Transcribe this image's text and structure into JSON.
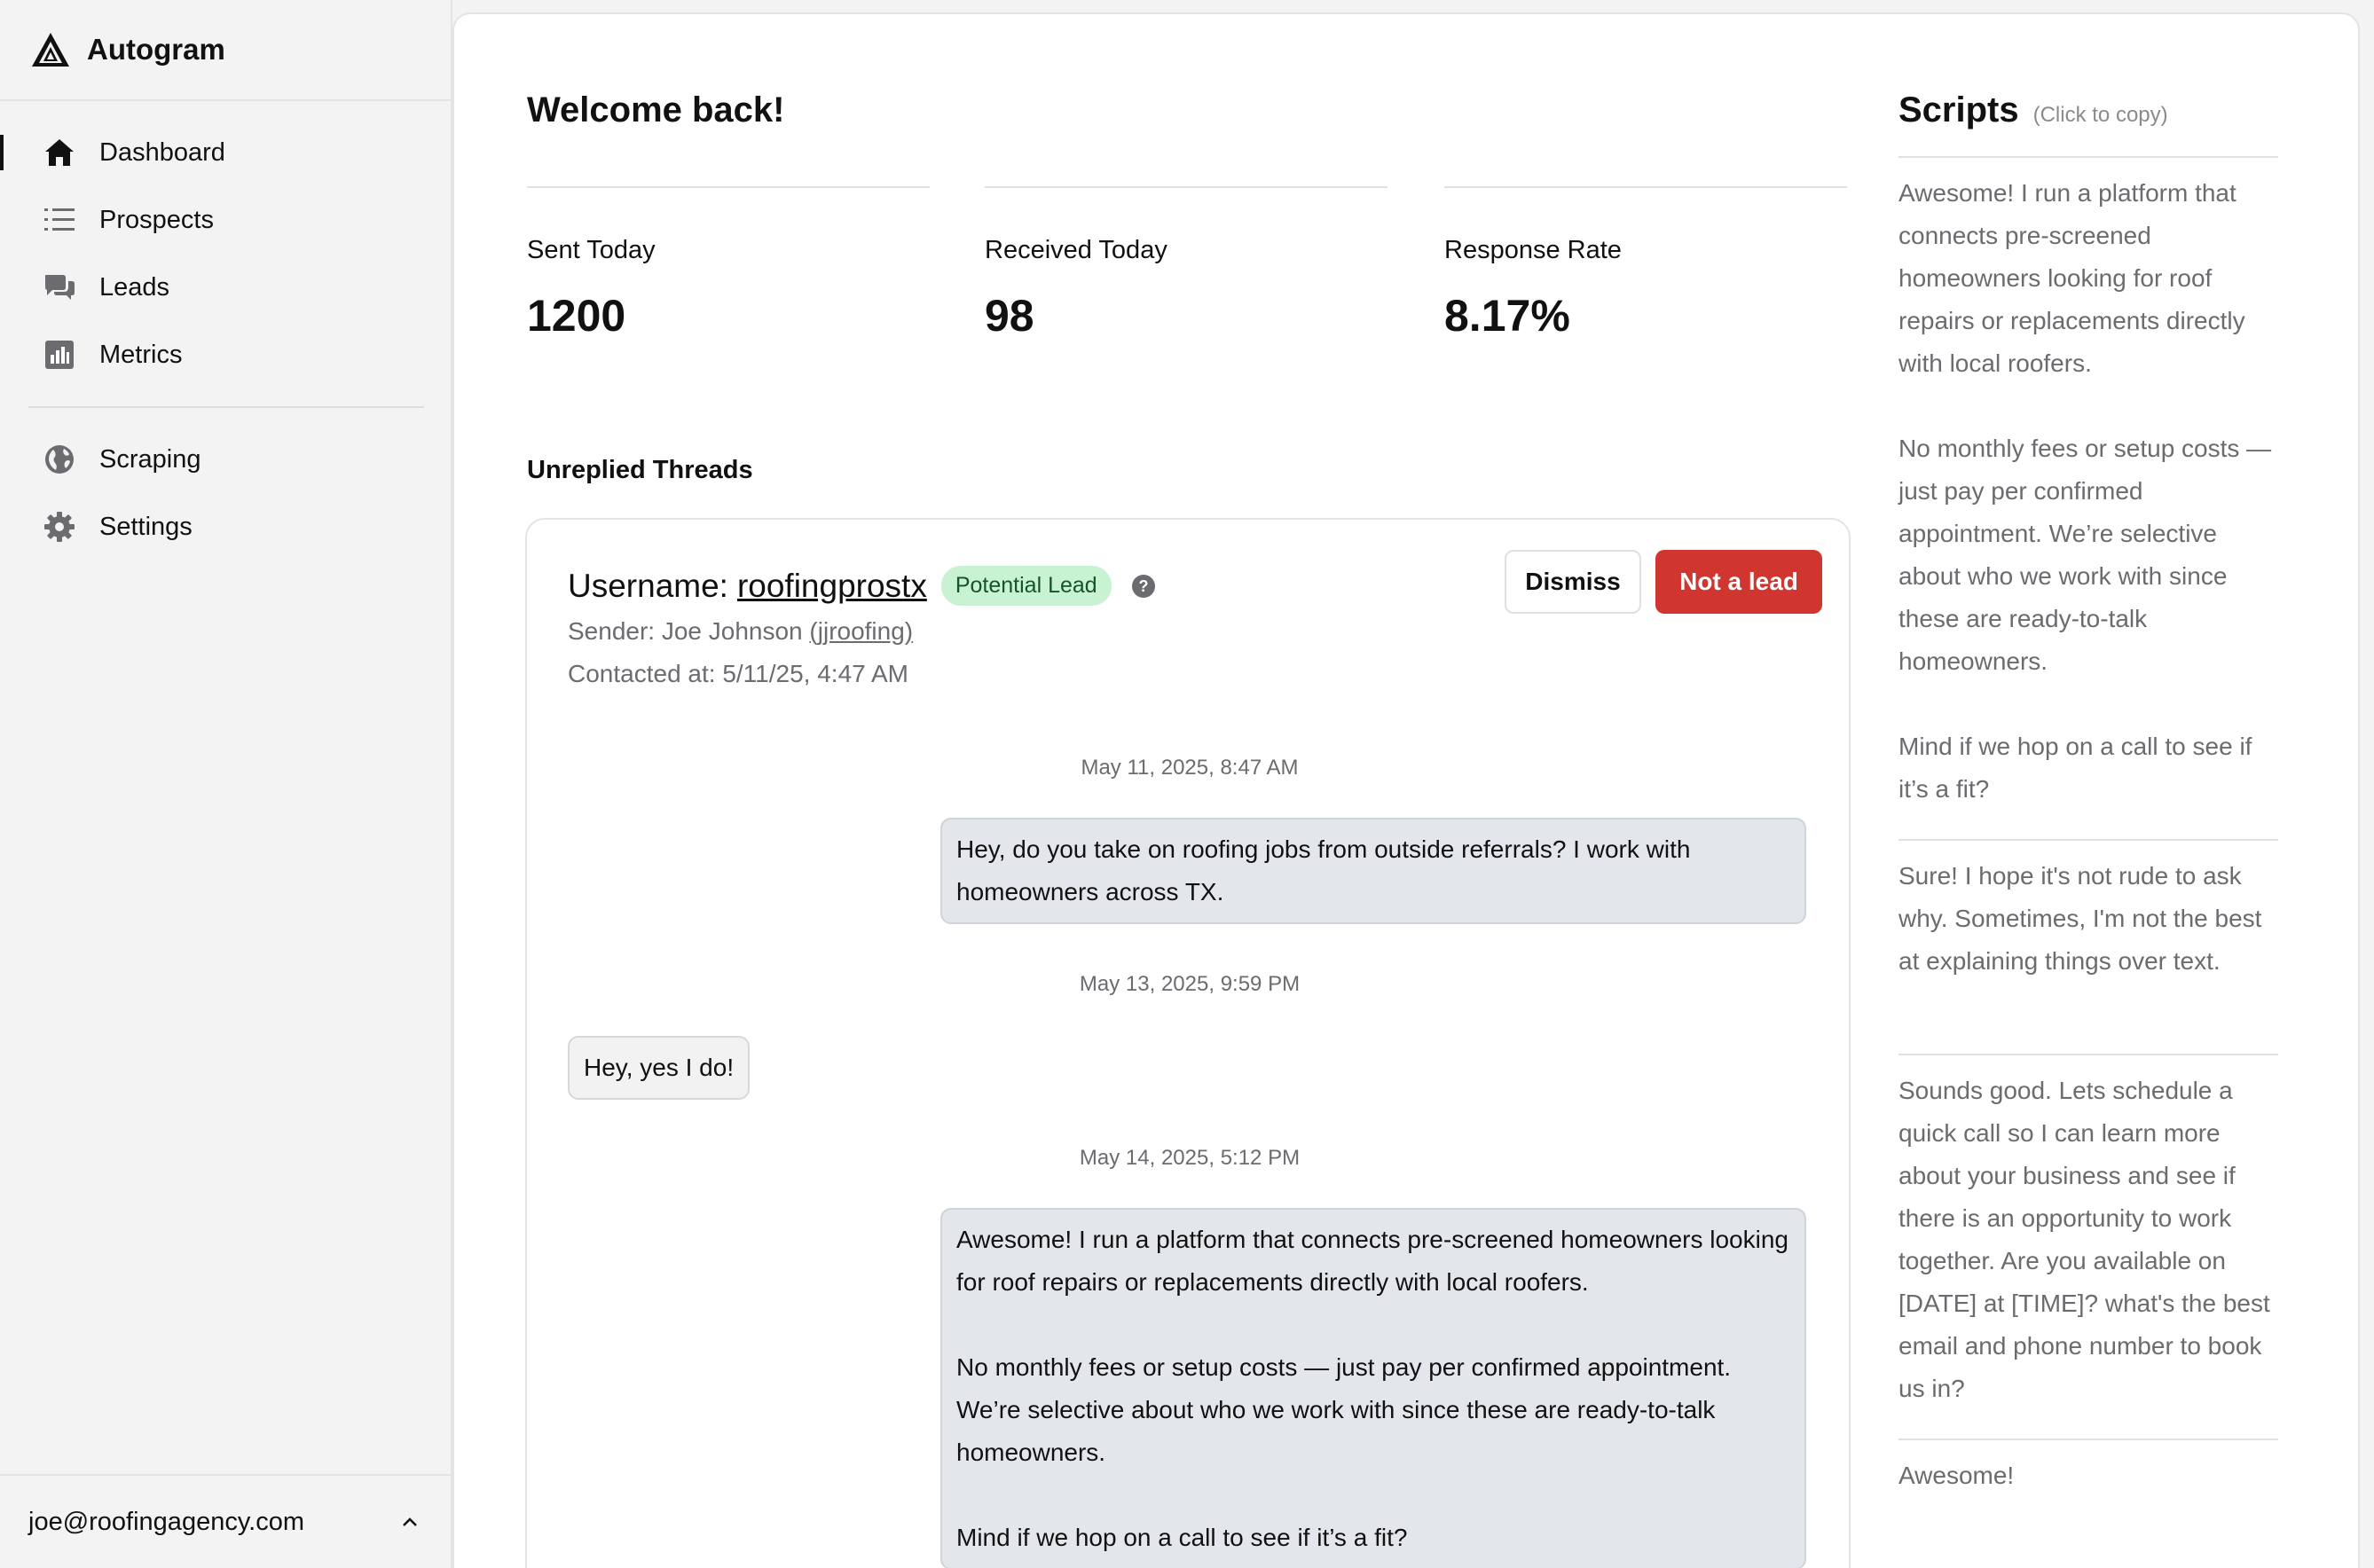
{
  "app": {
    "name": "Autogram"
  },
  "sidebar": {
    "items": [
      {
        "label": "Dashboard",
        "icon": "home-icon",
        "active": true
      },
      {
        "label": "Prospects",
        "icon": "list-icon"
      },
      {
        "label": "Leads",
        "icon": "chat-icon"
      },
      {
        "label": "Metrics",
        "icon": "bar-chart-icon"
      }
    ],
    "items2": [
      {
        "label": "Scraping",
        "icon": "globe-icon"
      },
      {
        "label": "Settings",
        "icon": "gear-icon"
      }
    ],
    "account": {
      "email": "joe@roofingagency.com",
      "icon": "chevron-up-icon"
    }
  },
  "main": {
    "welcome": "Welcome back!",
    "stats": [
      {
        "label": "Sent Today",
        "value": "1200"
      },
      {
        "label": "Received Today",
        "value": "98"
      },
      {
        "label": "Response Rate",
        "value": "8.17%"
      }
    ],
    "section_title": "Unreplied Threads",
    "thread": {
      "username_prefix": "Username:",
      "username": "roofingprostx",
      "badge": "Potential Lead",
      "sender_prefix": "Sender: Joe Johnson",
      "sender_handle": "(jjroofing)",
      "contacted": "Contacted at: 5/11/25, 4:47 AM",
      "dismiss_label": "Dismiss",
      "not_lead_label": "Not a lead",
      "messages": [
        {
          "time": "May 11, 2025, 8:47 AM",
          "direction": "out",
          "text": "Hey, do you take on roofing jobs from outside referrals? I work with homeowners across TX."
        },
        {
          "time": "May 13, 2025, 9:59 PM",
          "direction": "in",
          "text": "Hey, yes I do!"
        },
        {
          "time": "May 14, 2025, 5:12 PM",
          "direction": "out",
          "text": "Awesome! I run a platform that connects pre-screened homeowners looking for roof repairs or replacements directly with local roofers.\n\nNo monthly fees or setup costs — just pay per confirmed appointment. We’re selective about who we work with since these are ready-to-talk homeowners.\n\nMind if we hop on a call to see if it’s a fit?"
        }
      ]
    }
  },
  "scripts": {
    "title": "Scripts",
    "hint": "(Click to copy)",
    "items": [
      "Awesome! I run a platform that connects pre-screened homeowners looking for roof repairs or replacements directly with local roofers.\n\nNo monthly fees or setup costs — just pay per confirmed appointment. We’re selective about who we work with since these are ready-to-talk homeowners.\n\nMind if we hop on a call to see if it’s a fit?",
      "Sure! I hope it's not rude to ask why. Sometimes, I'm not the best at explaining things over text.",
      "Sounds good. Lets schedule a quick call so I can learn more about your business and see if there is an opportunity to work together. Are you available on [DATE] at [TIME]?  what's the best email and phone number to book us in?",
      "Awesome!"
    ]
  }
}
